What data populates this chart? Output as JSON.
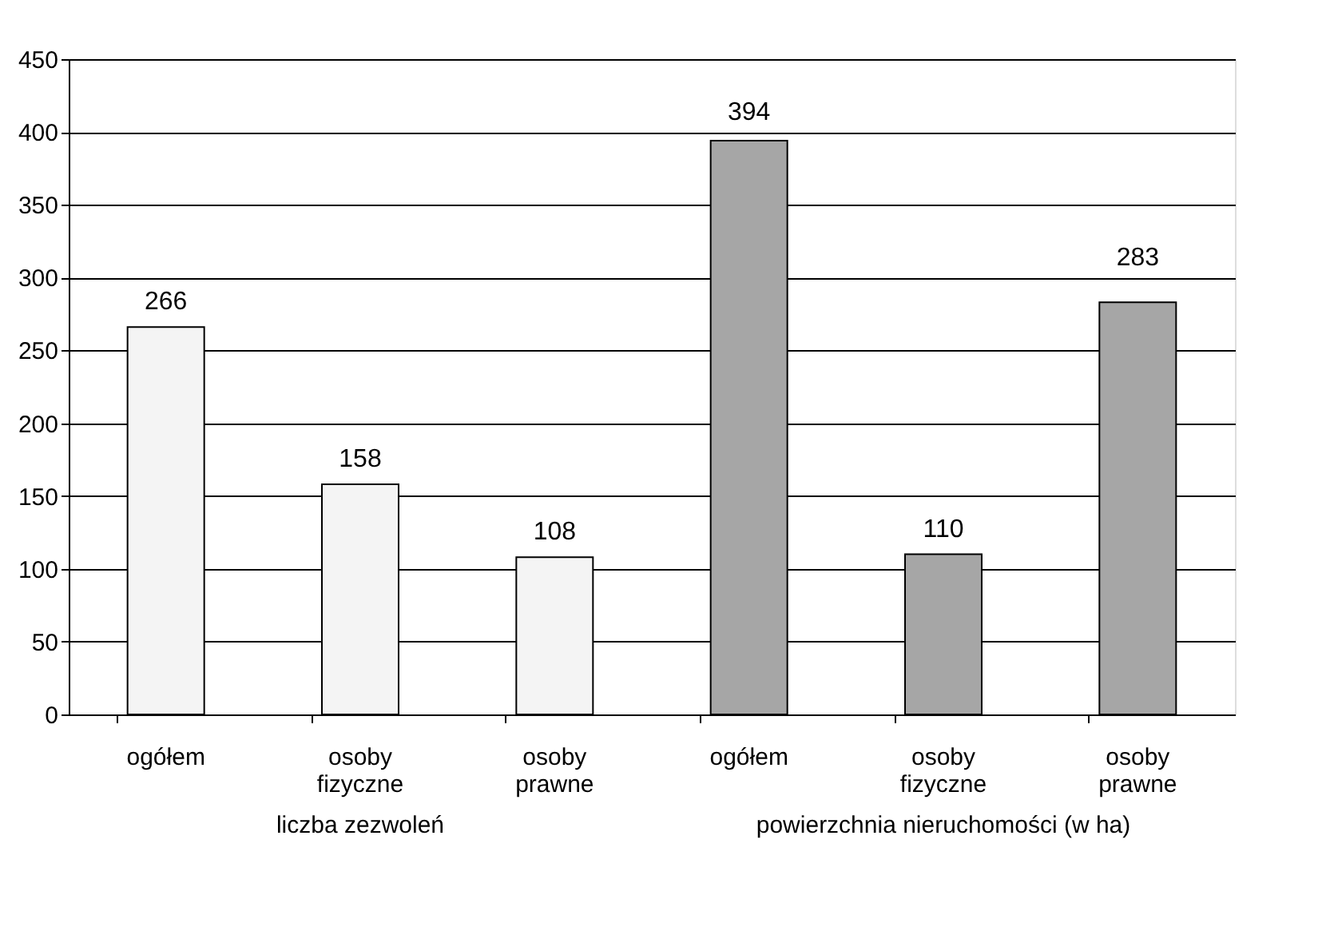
{
  "chart_data": {
    "type": "bar",
    "categories": [
      "ogółem",
      "osoby fizyczne",
      "osoby prawne",
      "ogółem",
      "osoby fizyczne",
      "osoby prawne"
    ],
    "values": [
      266,
      158,
      108,
      394,
      110,
      283
    ],
    "colors": [
      "#f4f4f4",
      "#f4f4f4",
      "#f4f4f4",
      "#a6a6a6",
      "#a6a6a6",
      "#a6a6a6"
    ],
    "ylim": [
      0,
      450
    ],
    "yticks": [
      0,
      50,
      100,
      150,
      200,
      250,
      300,
      350,
      400,
      450
    ],
    "grid": "y",
    "data_labels": true,
    "annotations": [
      "liczba zezwoleń",
      "powierzchnia nieruchomości (w ha)"
    ]
  }
}
